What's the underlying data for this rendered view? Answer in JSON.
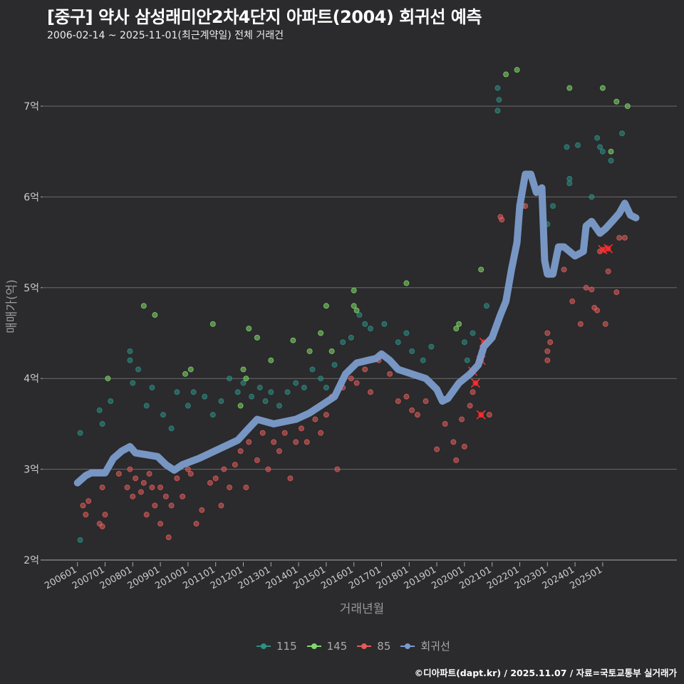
{
  "title": "[중구] 약사 삼성래미안2차4단지 아파트(2004) 회귀선 예측",
  "subtitle": "2006-02-14 ~ 2025-11-01(최근계약일) 전체 거래건",
  "credit": "©디아파트(dapt.kr) / 2025.11.07 / 자료=국토교통부 실거래가",
  "chart_data": {
    "type": "scatter",
    "xlabel": "거래년월",
    "ylabel": "매매가(억)",
    "ylim": [
      2,
      7.5
    ],
    "xlim": [
      2005.6,
      2026.0
    ],
    "yticks": [
      {
        "v": 2,
        "l": "2억"
      },
      {
        "v": 3,
        "l": "3억"
      },
      {
        "v": 4,
        "l": "4억"
      },
      {
        "v": 5,
        "l": "5억"
      },
      {
        "v": 6,
        "l": "6억"
      },
      {
        "v": 7,
        "l": "7억"
      }
    ],
    "xticks": [
      "200601",
      "200701",
      "200801",
      "200901",
      "201001",
      "201101",
      "201201",
      "201301",
      "201401",
      "201501",
      "201601",
      "201701",
      "201801",
      "201901",
      "202001",
      "202101",
      "202201",
      "202301",
      "202401",
      "202501"
    ],
    "legend": "bottom",
    "series": [
      {
        "name": "115",
        "color": "#2e8f86",
        "points": [
          [
            2006.1,
            2.22
          ],
          [
            2006.1,
            3.4
          ],
          [
            2006.8,
            3.65
          ],
          [
            2006.9,
            3.5
          ],
          [
            2007.2,
            3.75
          ],
          [
            2007.9,
            4.3
          ],
          [
            2007.9,
            4.2
          ],
          [
            2008.0,
            3.95
          ],
          [
            2008.2,
            4.1
          ],
          [
            2008.5,
            3.7
          ],
          [
            2008.7,
            3.9
          ],
          [
            2009.1,
            3.6
          ],
          [
            2009.4,
            3.45
          ],
          [
            2009.6,
            3.85
          ],
          [
            2010.0,
            3.7
          ],
          [
            2010.2,
            3.85
          ],
          [
            2010.6,
            3.8
          ],
          [
            2010.9,
            3.6
          ],
          [
            2011.2,
            3.75
          ],
          [
            2011.5,
            4.0
          ],
          [
            2011.8,
            3.85
          ],
          [
            2012.0,
            3.95
          ],
          [
            2012.3,
            3.8
          ],
          [
            2012.6,
            3.9
          ],
          [
            2012.8,
            3.75
          ],
          [
            2013.0,
            3.85
          ],
          [
            2013.3,
            3.7
          ],
          [
            2013.6,
            3.85
          ],
          [
            2013.9,
            3.95
          ],
          [
            2014.2,
            3.9
          ],
          [
            2014.5,
            4.1
          ],
          [
            2014.8,
            4.0
          ],
          [
            2015.0,
            3.9
          ],
          [
            2015.3,
            4.15
          ],
          [
            2015.6,
            4.4
          ],
          [
            2015.9,
            4.45
          ],
          [
            2016.2,
            4.7
          ],
          [
            2016.4,
            4.6
          ],
          [
            2016.6,
            4.55
          ],
          [
            2017.1,
            4.6
          ],
          [
            2017.6,
            4.4
          ],
          [
            2017.9,
            4.5
          ],
          [
            2018.1,
            4.3
          ],
          [
            2018.5,
            4.2
          ],
          [
            2018.8,
            4.35
          ],
          [
            2020.0,
            4.4
          ],
          [
            2020.1,
            4.2
          ],
          [
            2020.3,
            4.5
          ],
          [
            2020.8,
            4.8
          ],
          [
            2021.2,
            7.2
          ],
          [
            2021.2,
            6.95
          ],
          [
            2021.25,
            7.07
          ],
          [
            2022.1,
            5.9
          ],
          [
            2023.0,
            5.7
          ],
          [
            2023.2,
            5.9
          ],
          [
            2023.7,
            6.55
          ],
          [
            2023.8,
            6.2
          ],
          [
            2023.8,
            6.15
          ],
          [
            2024.1,
            6.57
          ],
          [
            2024.6,
            6.0
          ],
          [
            2024.8,
            6.65
          ],
          [
            2024.9,
            6.55
          ],
          [
            2025.0,
            6.5
          ],
          [
            2025.3,
            6.4
          ],
          [
            2025.7,
            6.7
          ]
        ]
      },
      {
        "name": "145",
        "color": "#7fd86a",
        "points": [
          [
            2007.1,
            4.0
          ],
          [
            2008.4,
            4.8
          ],
          [
            2008.8,
            4.7
          ],
          [
            2009.9,
            4.05
          ],
          [
            2010.1,
            4.1
          ],
          [
            2010.9,
            4.6
          ],
          [
            2011.9,
            3.7
          ],
          [
            2012.0,
            4.1
          ],
          [
            2012.1,
            4.0
          ],
          [
            2012.2,
            4.55
          ],
          [
            2012.5,
            4.45
          ],
          [
            2013.0,
            4.2
          ],
          [
            2013.8,
            4.42
          ],
          [
            2014.4,
            4.3
          ],
          [
            2014.8,
            4.5
          ],
          [
            2015.0,
            4.8
          ],
          [
            2015.2,
            4.3
          ],
          [
            2016.0,
            4.97
          ],
          [
            2016.0,
            4.8
          ],
          [
            2016.1,
            4.75
          ],
          [
            2017.9,
            5.05
          ],
          [
            2019.7,
            4.55
          ],
          [
            2019.8,
            4.6
          ],
          [
            2020.6,
            5.2
          ],
          [
            2021.5,
            7.35
          ],
          [
            2021.9,
            7.4
          ],
          [
            2023.8,
            7.2
          ],
          [
            2025.0,
            7.2
          ],
          [
            2025.3,
            6.5
          ],
          [
            2025.5,
            7.05
          ],
          [
            2025.9,
            7.0
          ]
        ]
      },
      {
        "name": "85",
        "color": "#e05c5c",
        "points": [
          [
            2006.2,
            2.6
          ],
          [
            2006.3,
            2.5
          ],
          [
            2006.4,
            2.65
          ],
          [
            2006.8,
            2.4
          ],
          [
            2006.9,
            2.8
          ],
          [
            2006.9,
            2.37
          ],
          [
            2007.0,
            2.5
          ],
          [
            2007.5,
            2.95
          ],
          [
            2007.8,
            2.8
          ],
          [
            2007.9,
            3.0
          ],
          [
            2008.0,
            2.7
          ],
          [
            2008.1,
            2.9
          ],
          [
            2008.3,
            2.75
          ],
          [
            2008.4,
            2.85
          ],
          [
            2008.5,
            2.5
          ],
          [
            2008.6,
            2.95
          ],
          [
            2008.7,
            2.8
          ],
          [
            2008.8,
            2.6
          ],
          [
            2009.0,
            2.4
          ],
          [
            2009.0,
            2.8
          ],
          [
            2009.2,
            2.7
          ],
          [
            2009.3,
            2.25
          ],
          [
            2009.4,
            2.6
          ],
          [
            2009.6,
            2.9
          ],
          [
            2009.8,
            2.7
          ],
          [
            2010.0,
            3.0
          ],
          [
            2010.1,
            2.95
          ],
          [
            2010.3,
            2.4
          ],
          [
            2010.5,
            2.55
          ],
          [
            2010.8,
            2.85
          ],
          [
            2011.0,
            2.9
          ],
          [
            2011.2,
            2.6
          ],
          [
            2011.3,
            3.0
          ],
          [
            2011.5,
            2.8
          ],
          [
            2011.7,
            3.05
          ],
          [
            2011.9,
            3.2
          ],
          [
            2012.1,
            2.8
          ],
          [
            2012.2,
            3.3
          ],
          [
            2012.5,
            3.1
          ],
          [
            2012.7,
            3.4
          ],
          [
            2012.9,
            3.0
          ],
          [
            2013.1,
            3.3
          ],
          [
            2013.3,
            3.2
          ],
          [
            2013.5,
            3.4
          ],
          [
            2013.7,
            2.9
          ],
          [
            2013.9,
            3.3
          ],
          [
            2014.1,
            3.45
          ],
          [
            2014.3,
            3.3
          ],
          [
            2014.6,
            3.55
          ],
          [
            2014.8,
            3.4
          ],
          [
            2015.0,
            3.6
          ],
          [
            2015.2,
            3.8
          ],
          [
            2015.4,
            3.0
          ],
          [
            2015.6,
            3.9
          ],
          [
            2015.9,
            4.0
          ],
          [
            2016.1,
            3.95
          ],
          [
            2016.4,
            4.1
          ],
          [
            2016.6,
            3.85
          ],
          [
            2016.9,
            4.2
          ],
          [
            2017.0,
            4.25
          ],
          [
            2017.3,
            4.05
          ],
          [
            2017.6,
            3.75
          ],
          [
            2017.9,
            3.8
          ],
          [
            2018.1,
            3.65
          ],
          [
            2018.3,
            3.6
          ],
          [
            2018.6,
            3.75
          ],
          [
            2019.0,
            3.22
          ],
          [
            2019.3,
            3.5
          ],
          [
            2019.6,
            3.3
          ],
          [
            2019.7,
            3.1
          ],
          [
            2019.9,
            3.55
          ],
          [
            2020.0,
            3.25
          ],
          [
            2020.2,
            3.7
          ],
          [
            2020.3,
            3.85
          ],
          [
            2020.9,
            3.6
          ],
          [
            2021.3,
            5.78
          ],
          [
            2021.35,
            5.75
          ],
          [
            2022.2,
            5.9
          ],
          [
            2023.0,
            4.5
          ],
          [
            2023.0,
            4.3
          ],
          [
            2023.0,
            4.2
          ],
          [
            2023.1,
            4.4
          ],
          [
            2023.6,
            5.2
          ],
          [
            2023.9,
            4.85
          ],
          [
            2024.2,
            4.6
          ],
          [
            2024.4,
            5.0
          ],
          [
            2024.6,
            4.98
          ],
          [
            2024.7,
            4.78
          ],
          [
            2024.8,
            4.75
          ],
          [
            2024.9,
            5.4
          ],
          [
            2025.1,
            4.6
          ],
          [
            2025.2,
            5.18
          ],
          [
            2025.5,
            4.95
          ],
          [
            2025.6,
            5.55
          ],
          [
            2025.8,
            5.55
          ]
        ],
        "highlight": [
          [
            2020.3,
            4.08
          ],
          [
            2020.4,
            3.95
          ],
          [
            2020.6,
            4.2
          ],
          [
            2020.7,
            4.4
          ],
          [
            2020.6,
            3.6
          ],
          [
            2025.0,
            5.42
          ],
          [
            2025.2,
            5.43
          ]
        ]
      },
      {
        "name": "회귀선",
        "color": "#7b9ccb",
        "line": [
          [
            2006.0,
            2.85
          ],
          [
            2006.3,
            2.93
          ],
          [
            2006.5,
            2.96
          ],
          [
            2007.0,
            2.96
          ],
          [
            2007.3,
            3.12
          ],
          [
            2007.6,
            3.2
          ],
          [
            2007.9,
            3.25
          ],
          [
            2008.1,
            3.18
          ],
          [
            2008.5,
            3.16
          ],
          [
            2008.9,
            3.14
          ],
          [
            2009.2,
            3.05
          ],
          [
            2009.5,
            2.99
          ],
          [
            2009.8,
            3.05
          ],
          [
            2010.4,
            3.12
          ],
          [
            2011.1,
            3.22
          ],
          [
            2011.8,
            3.32
          ],
          [
            2012.1,
            3.42
          ],
          [
            2012.5,
            3.55
          ],
          [
            2013.1,
            3.5
          ],
          [
            2013.9,
            3.55
          ],
          [
            2014.4,
            3.62
          ],
          [
            2014.9,
            3.72
          ],
          [
            2015.3,
            3.8
          ],
          [
            2015.7,
            4.05
          ],
          [
            2016.1,
            4.17
          ],
          [
            2016.5,
            4.2
          ],
          [
            2016.8,
            4.22
          ],
          [
            2017.0,
            4.27
          ],
          [
            2017.3,
            4.2
          ],
          [
            2017.6,
            4.1
          ],
          [
            2018.1,
            4.05
          ],
          [
            2018.6,
            4.0
          ],
          [
            2019.0,
            3.88
          ],
          [
            2019.2,
            3.75
          ],
          [
            2019.4,
            3.78
          ],
          [
            2019.8,
            3.95
          ],
          [
            2020.2,
            4.05
          ],
          [
            2020.5,
            4.15
          ],
          [
            2020.7,
            4.35
          ],
          [
            2021.0,
            4.45
          ],
          [
            2021.3,
            4.7
          ],
          [
            2021.5,
            4.85
          ],
          [
            2021.7,
            5.2
          ],
          [
            2021.9,
            5.5
          ],
          [
            2022.0,
            5.9
          ],
          [
            2022.2,
            6.25
          ],
          [
            2022.4,
            6.25
          ],
          [
            2022.6,
            6.05
          ],
          [
            2022.8,
            6.1
          ],
          [
            2022.9,
            5.3
          ],
          [
            2023.0,
            5.15
          ],
          [
            2023.2,
            5.15
          ],
          [
            2023.4,
            5.45
          ],
          [
            2023.6,
            5.45
          ],
          [
            2024.0,
            5.35
          ],
          [
            2024.3,
            5.4
          ],
          [
            2024.4,
            5.68
          ],
          [
            2024.6,
            5.73
          ],
          [
            2024.9,
            5.6
          ],
          [
            2025.1,
            5.65
          ],
          [
            2025.4,
            5.75
          ],
          [
            2025.6,
            5.82
          ],
          [
            2025.8,
            5.93
          ],
          [
            2026.0,
            5.8
          ],
          [
            2026.2,
            5.77
          ]
        ]
      }
    ]
  }
}
